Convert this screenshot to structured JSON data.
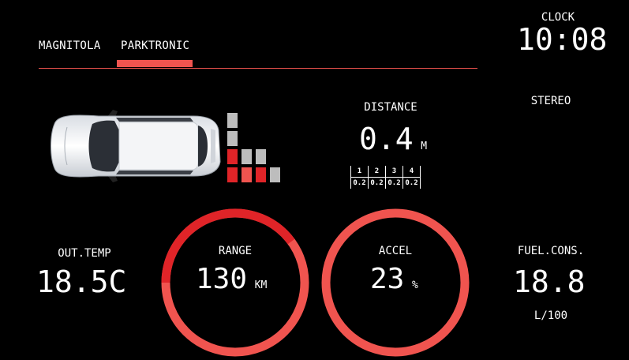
{
  "tabs": [
    {
      "label": "MAGNITOLA",
      "active": false
    },
    {
      "label": "PARKTRONIC",
      "active": true
    }
  ],
  "clock": {
    "label": "CLOCK",
    "time": "10:08"
  },
  "stereo": {
    "label": "STEREO"
  },
  "distance": {
    "label": "DISTANCE",
    "value": "0.4",
    "unit": "M"
  },
  "sensors": {
    "ids": [
      "1",
      "2",
      "3",
      "4"
    ],
    "values": [
      "0.2",
      "0.2",
      "0.2",
      "0.2"
    ]
  },
  "out_temp": {
    "label": "OUT.TEMP",
    "value": "18.5C"
  },
  "range": {
    "label": "RANGE",
    "value": "130",
    "unit": "KM"
  },
  "accel": {
    "label": "ACCEL",
    "value": "23",
    "unit": "%"
  },
  "fuel": {
    "label": "FUEL.CONS.",
    "value": "18.8",
    "unit": "L/100"
  },
  "colors": {
    "accent": "#f0544f",
    "dark_red": "#e02428",
    "gray": "#bdbdbd",
    "bg": "#000000"
  }
}
